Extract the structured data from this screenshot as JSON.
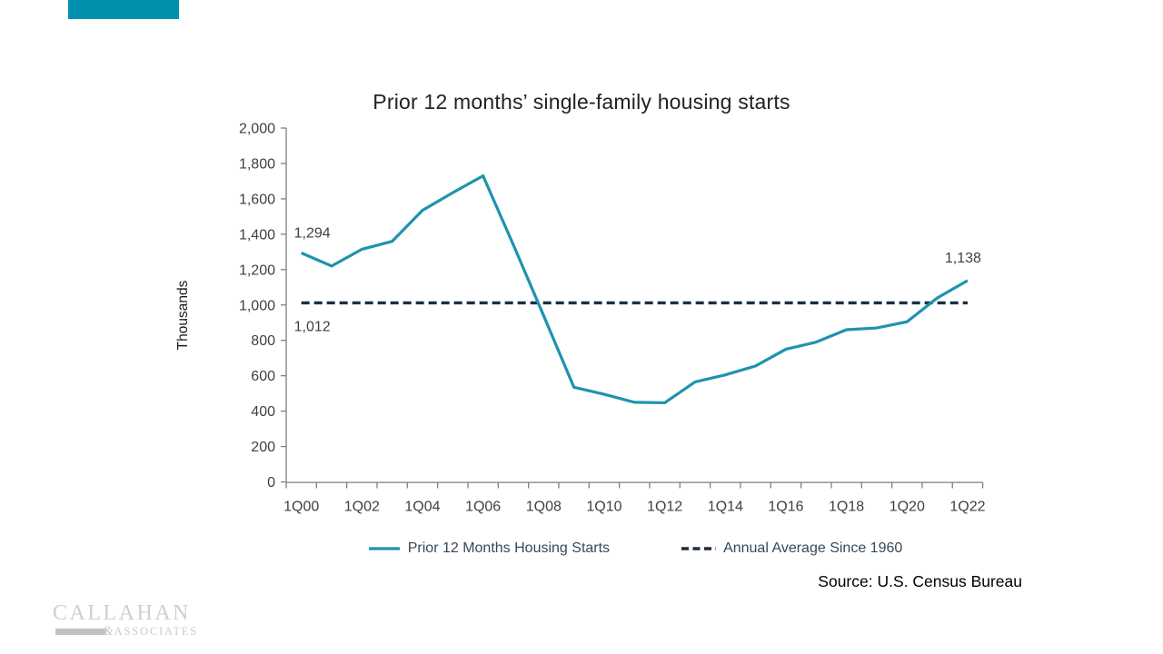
{
  "accent_color": "#0091AE",
  "title": "Prior 12 months’ single-family housing starts",
  "chart_data": {
    "type": "line",
    "title": "Prior 12 months’ single-family housing starts",
    "xlabel": "",
    "ylabel": "Thousands",
    "ylim": [
      0,
      2000
    ],
    "ytick_step": 200,
    "grid": false,
    "legend_position": "bottom",
    "xtick_every": 2,
    "categories": [
      "1Q00",
      "1Q01",
      "1Q02",
      "1Q03",
      "1Q04",
      "1Q05",
      "1Q06",
      "1Q07",
      "1Q08",
      "1Q09",
      "1Q10",
      "1Q11",
      "1Q12",
      "1Q13",
      "1Q14",
      "1Q15",
      "1Q16",
      "1Q17",
      "1Q18",
      "1Q19",
      "1Q20",
      "1Q21",
      "1Q22"
    ],
    "series": [
      {
        "name": "Prior 12 Months Housing Starts",
        "type": "line",
        "style": "solid",
        "color": "#1E93AE",
        "values": [
          1294,
          1220,
          1315,
          1360,
          1535,
          1635,
          1730,
          1340,
          940,
          535,
          495,
          450,
          447,
          565,
          605,
          655,
          750,
          790,
          860,
          870,
          905,
          1040,
          1138
        ]
      },
      {
        "name": "Annual Average Since 1960",
        "type": "constant-line",
        "style": "dashed",
        "color": "#1C2F42",
        "value": 1012
      }
    ],
    "annotations": [
      {
        "text": "1,294",
        "attach": "series-point",
        "index": 0,
        "placement": "above-left"
      },
      {
        "text": "1,012",
        "attach": "average-line",
        "placement": "below-start"
      },
      {
        "text": "1,138",
        "attach": "series-point",
        "index": 22,
        "placement": "above"
      }
    ],
    "axis_color": "#7F7F7F",
    "tick_text_color": "#404040"
  },
  "source": {
    "text": "Source: U.S. Census Bureau"
  },
  "logo": {
    "name": "CALLAHAN",
    "amp": "&",
    "suffix": "ASSOCIATES"
  }
}
